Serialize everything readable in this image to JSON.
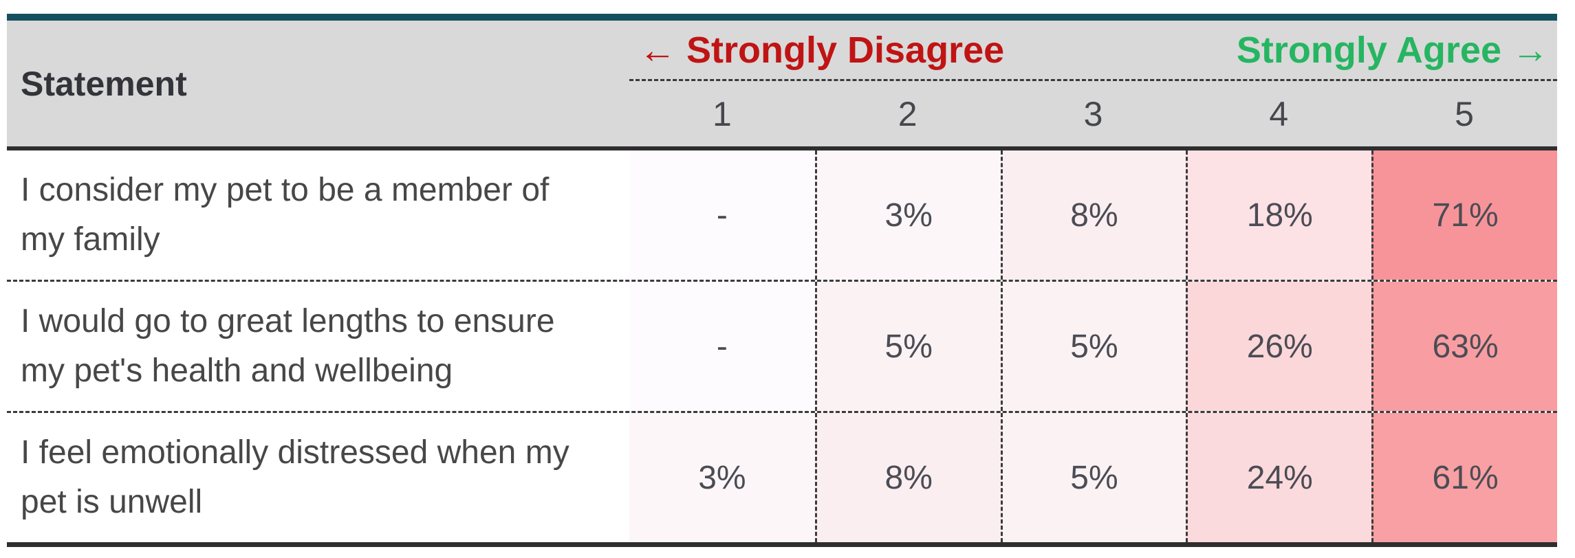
{
  "header": {
    "statement_label": "Statement",
    "disagree_label": "← Strongly Disagree",
    "agree_label": "Strongly Agree →",
    "scale_numbers": [
      "1",
      "2",
      "3",
      "4",
      "5"
    ]
  },
  "colors": {
    "top_bar_teal": "#14505e",
    "header_gray": "#d9d9d9",
    "disagree_red": "#c01414",
    "agree_green": "#26b561",
    "heat_min": "#ffffff",
    "heat_max": "#f79499"
  },
  "rows": [
    {
      "statement": "I consider my pet to be a member of my family",
      "cells": [
        {
          "value": "-",
          "bg": "#fdfbfd"
        },
        {
          "value": "3%",
          "bg": "#fcf6f8"
        },
        {
          "value": "8%",
          "bg": "#fbeef1"
        },
        {
          "value": "18%",
          "bg": "#fce1e5"
        },
        {
          "value": "71%",
          "bg": "#f79499"
        }
      ]
    },
    {
      "statement": "I would go to great lengths to ensure my pet's health and wellbeing",
      "cells": [
        {
          "value": "-",
          "bg": "#fdfbfd"
        },
        {
          "value": "5%",
          "bg": "#fbf2f4"
        },
        {
          "value": "5%",
          "bg": "#fbf2f4"
        },
        {
          "value": "26%",
          "bg": "#fbd7da"
        },
        {
          "value": "63%",
          "bg": "#f89da1"
        }
      ]
    },
    {
      "statement": "I feel emotionally distressed when my pet is unwell",
      "cells": [
        {
          "value": "3%",
          "bg": "#fcf6f8"
        },
        {
          "value": "8%",
          "bg": "#fbeef1"
        },
        {
          "value": "5%",
          "bg": "#fbf2f4"
        },
        {
          "value": "24%",
          "bg": "#fbdadd"
        },
        {
          "value": "61%",
          "bg": "#f8a0a3"
        }
      ]
    }
  ],
  "chart_data": {
    "type": "table",
    "title": "",
    "columns": [
      "Statement",
      "1",
      "2",
      "3",
      "4",
      "5"
    ],
    "scale_left_label": "← Strongly Disagree",
    "scale_right_label": "Strongly Agree →",
    "rows": [
      {
        "statement": "I consider my pet to be a member of my family",
        "values_pct": [
          null,
          3,
          8,
          18,
          71
        ],
        "display": [
          "-",
          "3%",
          "8%",
          "18%",
          "71%"
        ]
      },
      {
        "statement": "I would go to great lengths to ensure my pet's health and wellbeing",
        "values_pct": [
          null,
          5,
          5,
          26,
          63
        ],
        "display": [
          "-",
          "5%",
          "5%",
          "26%",
          "63%"
        ]
      },
      {
        "statement": "I feel emotionally distressed when my pet is unwell",
        "values_pct": [
          3,
          8,
          5,
          24,
          61
        ],
        "display": [
          "3%",
          "8%",
          "5%",
          "24%",
          "61%"
        ]
      }
    ],
    "heatmap": {
      "min_color": "#ffffff",
      "max_color": "#f79499",
      "max_value": 71
    },
    "layout": {
      "grid": "dashed-separators",
      "header_background": "#d9d9d9",
      "top_rule": "#14505e"
    }
  }
}
